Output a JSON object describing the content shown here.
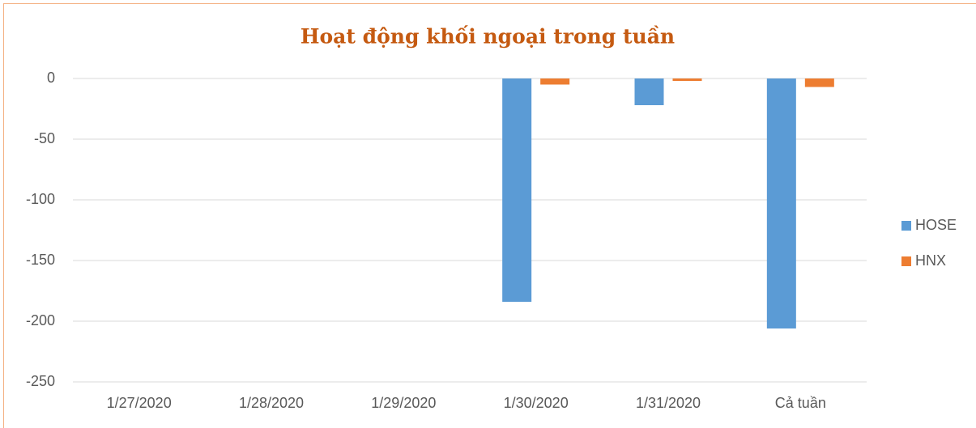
{
  "chart_data": {
    "type": "bar",
    "title": "Hoạt động khối ngoại trong tuần",
    "categories": [
      "1/27/2020",
      "1/28/2020",
      "1/29/2020",
      "1/30/2020",
      "1/31/2020",
      "Cả tuần"
    ],
    "series": [
      {
        "name": "HOSE",
        "color": "#5b9bd5",
        "values": [
          null,
          null,
          null,
          -184,
          -22,
          -206
        ]
      },
      {
        "name": "HNX",
        "color": "#ed7d31",
        "values": [
          null,
          null,
          null,
          -5,
          -2,
          -7
        ]
      }
    ],
    "ylim": [
      -250,
      0
    ],
    "yticks": [
      0,
      -50,
      -100,
      -150,
      -200,
      -250
    ],
    "grid": true,
    "legend": "right"
  }
}
